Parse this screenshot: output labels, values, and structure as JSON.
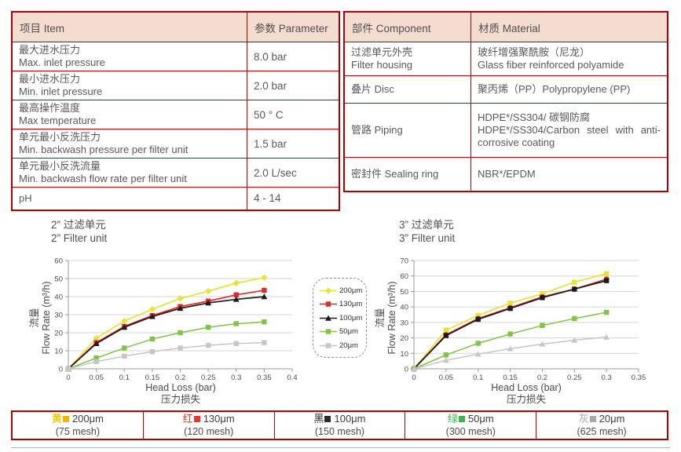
{
  "spec_table": {
    "headers": [
      "项目 Item",
      "参数 Parameter"
    ],
    "rows": [
      {
        "zh": "最大进水压力",
        "en": "Max. inlet pressure",
        "value": "8.0 bar"
      },
      {
        "zh": "最小进水压力",
        "en": "Min. inlet pressure",
        "value": "2.0 bar"
      },
      {
        "zh": "最高操作温度",
        "en": "Max temperature",
        "value": "50 ° C"
      },
      {
        "zh": "单元最小反洗压力",
        "en": "Min. backwash pressure per filter unit",
        "value": "1.5 bar"
      },
      {
        "zh": "单元最小反洗流量",
        "en": "Min. backwash flow rate per filter unit",
        "value": "2.0 L/sec"
      },
      {
        "zh": "pH",
        "value": "4 - 14"
      }
    ]
  },
  "material_table": {
    "headers": [
      "部件 Component",
      "材质 Material"
    ],
    "rows": [
      {
        "name_zh": "过滤单元外壳",
        "name_en": "Filter housing",
        "mat_zh": "玻纤增强聚酰胺（尼龙）",
        "mat_en": "Glass fiber reinforced polyamide"
      },
      {
        "name": "叠片 Disc",
        "mat": "聚丙烯（PP）Polypropylene (PP)"
      },
      {
        "name": "管路 Piping",
        "mat_zh": "HDPE*/SS304/ 碳钢防腐",
        "mat_en": "HDPE*/SS304/Carbon steel with anti-corrosive coating"
      },
      {
        "name": "密封件 Sealing ring",
        "mat": "NBR*/EPDM"
      }
    ]
  },
  "chart_data": [
    {
      "type": "line",
      "title_zh": "2” 过滤单元",
      "title_en": "2” Filter unit",
      "xlabel": "Head Loss (bar)",
      "xlabel_zh": "压力损失",
      "ylabel_zh": "流量",
      "ylabel": "Flow Rate (m³/h)",
      "xlim": [
        0,
        0.4
      ],
      "ylim": [
        0,
        60
      ],
      "ystep": 10,
      "xticks": [
        "0",
        "0.05",
        "0.1",
        "0.15",
        "0.2",
        "0.25",
        "0.3",
        "0.35",
        "0.4"
      ],
      "x": [
        0,
        0.05,
        0.1,
        0.15,
        0.2,
        0.25,
        0.3,
        0.35
      ],
      "grid": true,
      "legend_position": "right-outside",
      "series": [
        {
          "name": "200μm",
          "color": "#e8e335",
          "marker": "diamond",
          "values": [
            0,
            17,
            26.5,
            33,
            39,
            43,
            47.5,
            50.5
          ]
        },
        {
          "name": "130μm",
          "color": "#df2a26",
          "marker": "square",
          "values": [
            0,
            14.5,
            23.5,
            29.5,
            34.5,
            37.5,
            41,
            43.5
          ]
        },
        {
          "name": "100μm",
          "color": "#1c1c1c",
          "marker": "triangle",
          "values": [
            0,
            14,
            23,
            29,
            33.5,
            36.5,
            38.5,
            40
          ]
        },
        {
          "name": "50μm",
          "color": "#7fc347",
          "marker": "square",
          "values": [
            0,
            6,
            11.5,
            16.5,
            20,
            23,
            25,
            26
          ]
        },
        {
          "name": "20μm",
          "color": "#c6c6c6",
          "marker": "square",
          "values": [
            0,
            4,
            7,
            9.5,
            11.5,
            13,
            14,
            14.5
          ]
        }
      ]
    },
    {
      "type": "line",
      "title_zh": "3” 过滤单元",
      "title_en": "3” Filter unit",
      "xlabel": "Head Loss (bar)",
      "xlabel_zh": "压力损失",
      "ylabel_zh": "流量",
      "ylabel": "Flow Rate (m³/h)",
      "xlim": [
        0,
        0.35
      ],
      "ylim": [
        0,
        70
      ],
      "ystep": 10,
      "xticks": [
        "0",
        "0.05",
        "0.1",
        "0.15",
        "0.2",
        "0.25",
        "0.3",
        "0.35"
      ],
      "x": [
        0,
        0.05,
        0.1,
        0.15,
        0.2,
        0.25,
        0.3
      ],
      "grid": true,
      "series": [
        {
          "name": "200μm",
          "color": "#e8e335",
          "marker": "square",
          "values": [
            0,
            25,
            34.5,
            42.5,
            48.5,
            56,
            61.5
          ]
        },
        {
          "name": "130μm",
          "color": "#df2a26",
          "marker": "circle",
          "values": [
            0,
            22,
            32.5,
            39.5,
            46.5,
            51.5,
            58
          ]
        },
        {
          "name": "100μm",
          "color": "#1c1c1c",
          "marker": "square",
          "values": [
            0,
            21.5,
            32,
            39,
            46,
            51.5,
            57
          ]
        },
        {
          "name": "50μm",
          "color": "#7fc347",
          "marker": "square",
          "values": [
            0,
            9,
            16.5,
            22.5,
            28,
            32.5,
            36.5
          ]
        },
        {
          "name": "20μm",
          "color": "#c6c6c6",
          "marker": "triangle",
          "values": [
            0,
            5.5,
            9.5,
            13,
            16,
            18.5,
            20.5
          ]
        }
      ]
    }
  ],
  "chart_legend": {
    "items": [
      {
        "label": "200μm",
        "color": "#e8e335",
        "marker": "diamond"
      },
      {
        "label": "130μm",
        "color": "#df2a26",
        "marker": "square"
      },
      {
        "label": "100μm",
        "color": "#1c1c1c",
        "marker": "triangle"
      },
      {
        "label": "50μm",
        "color": "#7fc347",
        "marker": "square"
      },
      {
        "label": "20μm",
        "color": "#c6c6c6",
        "marker": "square"
      }
    ]
  },
  "bottom_legend": {
    "items": [
      {
        "color_char": "黄",
        "color": "#f0b400",
        "size": "200μm",
        "mesh": "(75 mesh)"
      },
      {
        "color_char": "红",
        "color": "#e23b2e",
        "size": "130μm",
        "mesh": "(120 mesh)"
      },
      {
        "color_char": "黑",
        "color": "#2b2b2b",
        "size": "100μm",
        "mesh": "(150 mesh)"
      },
      {
        "color_char": "绿",
        "color": "#3cb54a",
        "size": "50μm",
        "mesh": "(300 mesh)"
      },
      {
        "color_char": "灰",
        "color": "#a8a8a8",
        "size": "20μm",
        "mesh": "(625 mesh)"
      }
    ]
  }
}
